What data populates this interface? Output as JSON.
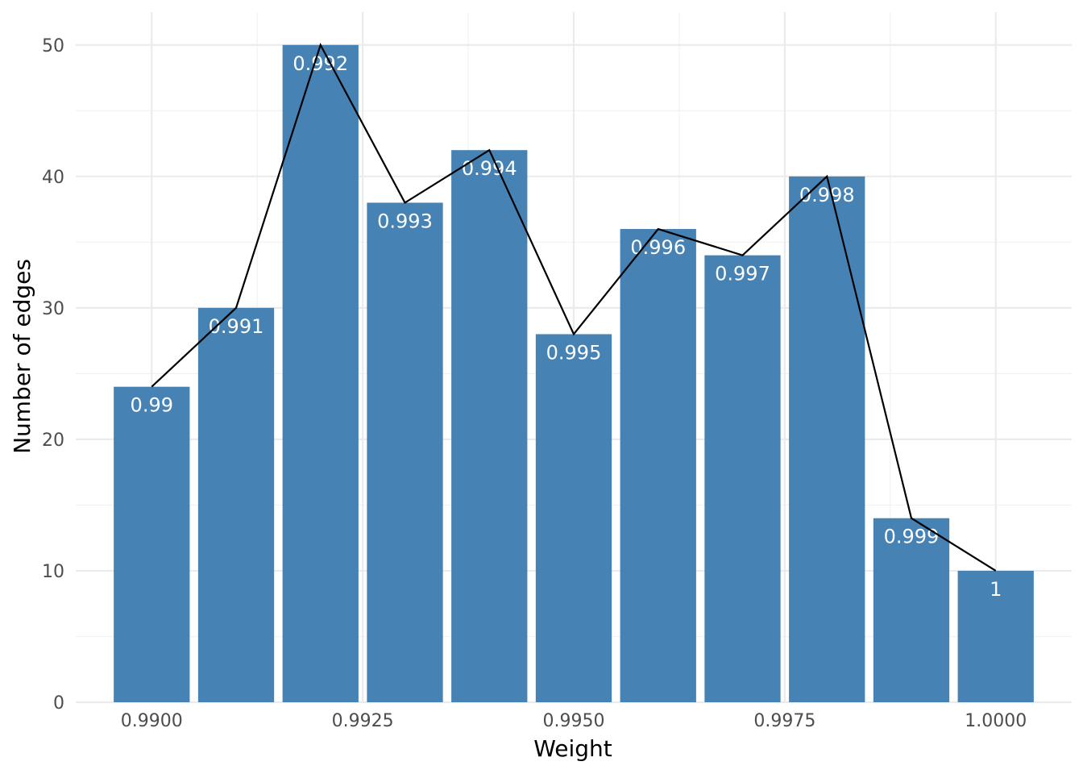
{
  "chart_data": {
    "type": "bar",
    "title": "",
    "xlabel": "Weight",
    "ylabel": "Number of edges",
    "x": [
      0.99,
      0.991,
      0.992,
      0.993,
      0.994,
      0.995,
      0.996,
      0.997,
      0.998,
      0.999,
      1.0
    ],
    "values": [
      24,
      30,
      50,
      38,
      42,
      28,
      36,
      34,
      40,
      14,
      10
    ],
    "bar_labels": [
      "0.99",
      "0.991",
      "0.992",
      "0.993",
      "0.994",
      "0.995",
      "0.996",
      "0.997",
      "0.998",
      "0.999",
      "1"
    ],
    "xlim": [
      0.9891,
      1.0009
    ],
    "ylim": [
      0,
      52.5
    ],
    "x_ticks": [
      0.99,
      0.9925,
      0.995,
      0.9975,
      1.0
    ],
    "x_tick_labels": [
      "0.9900",
      "0.9925",
      "0.9950",
      "0.9975",
      "1.0000"
    ],
    "y_ticks": [
      0,
      10,
      20,
      30,
      40,
      50
    ],
    "y_tick_labels": [
      "0",
      "10",
      "20",
      "30",
      "40",
      "50"
    ],
    "bar_width": 0.0009,
    "bar_color": "#4682B4",
    "line_color": "#000000",
    "grid": true,
    "legend": "none",
    "overlay": "line connecting bar tops"
  }
}
